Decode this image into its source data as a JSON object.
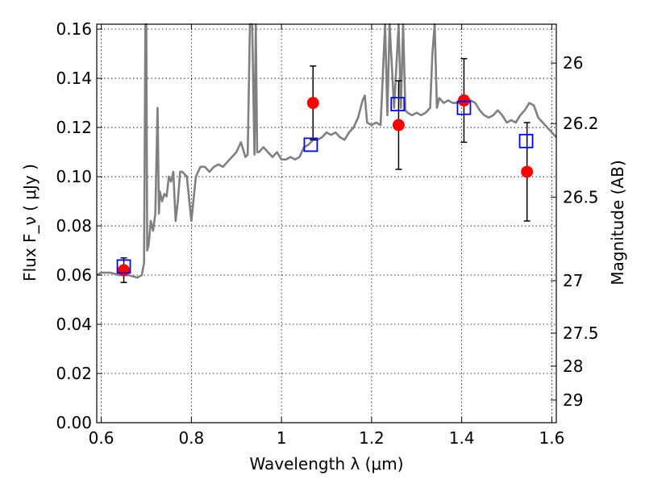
{
  "chart_data": {
    "type": "line",
    "xlabel": "Wavelength  λ (μm)",
    "ylabel": "Flux  F_ν  ( μJy )",
    "ylabel_right": "Magnitude (AB)",
    "xlim": [
      0.59,
      1.61
    ],
    "ylim": [
      0.0,
      0.162
    ],
    "grid": true,
    "x_ticks": [
      0.6,
      0.8,
      1.0,
      1.2,
      1.4,
      1.6
    ],
    "x_tick_labels": [
      "0.6",
      "0.8",
      "1",
      "1.2",
      "1.4",
      "1.6"
    ],
    "y_ticks": [
      0.0,
      0.02,
      0.04,
      0.06,
      0.08,
      0.1,
      0.12,
      0.14,
      0.16
    ],
    "y_tick_labels": [
      "0.00",
      "0.02",
      "0.04",
      "0.06",
      "0.08",
      "0.10",
      "0.12",
      "0.14",
      "0.16"
    ],
    "right_ticks": [
      {
        "flux": 0.1462,
        "label": "26"
      },
      {
        "flux": 0.1216,
        "label": "26.2"
      },
      {
        "flux": 0.0917,
        "label": "26.5"
      },
      {
        "flux": 0.0577,
        "label": "27"
      },
      {
        "flux": 0.0364,
        "label": "27.5"
      },
      {
        "flux": 0.023,
        "label": "28"
      },
      {
        "flux": 0.0092,
        "label": "29"
      }
    ],
    "series": [
      {
        "kind": "spectrum",
        "color": "#808080",
        "x": [
          0.59,
          0.6,
          0.62,
          0.64,
          0.66,
          0.68,
          0.69,
          0.695,
          0.698,
          0.7,
          0.702,
          0.705,
          0.71,
          0.715,
          0.72,
          0.725,
          0.728,
          0.73,
          0.735,
          0.74,
          0.745,
          0.75,
          0.755,
          0.76,
          0.765,
          0.77,
          0.775,
          0.78,
          0.79,
          0.8,
          0.81,
          0.82,
          0.83,
          0.84,
          0.85,
          0.86,
          0.87,
          0.88,
          0.89,
          0.9,
          0.91,
          0.92,
          0.925,
          0.93,
          0.935,
          0.94,
          0.943,
          0.946,
          0.95,
          0.96,
          0.97,
          0.98,
          0.99,
          1.0,
          1.01,
          1.02,
          1.03,
          1.04,
          1.05,
          1.06,
          1.07,
          1.08,
          1.09,
          1.1,
          1.11,
          1.12,
          1.13,
          1.14,
          1.15,
          1.16,
          1.17,
          1.18,
          1.185,
          1.19,
          1.2,
          1.21,
          1.22,
          1.23,
          1.235,
          1.24,
          1.25,
          1.26,
          1.265,
          1.27,
          1.275,
          1.28,
          1.29,
          1.3,
          1.31,
          1.32,
          1.33,
          1.335,
          1.34,
          1.345,
          1.35,
          1.36,
          1.37,
          1.38,
          1.39,
          1.4,
          1.41,
          1.42,
          1.43,
          1.44,
          1.45,
          1.46,
          1.47,
          1.48,
          1.49,
          1.5,
          1.51,
          1.52,
          1.53,
          1.54,
          1.55,
          1.56,
          1.57,
          1.58,
          1.59,
          1.6,
          1.61
        ],
        "y": [
          0.06,
          0.061,
          0.061,
          0.06,
          0.06,
          0.059,
          0.06,
          0.065,
          0.162,
          0.162,
          0.07,
          0.072,
          0.082,
          0.078,
          0.085,
          0.128,
          0.085,
          0.094,
          0.09,
          0.093,
          0.092,
          0.1,
          0.098,
          0.102,
          0.082,
          0.09,
          0.102,
          0.102,
          0.1,
          0.082,
          0.1,
          0.104,
          0.104,
          0.102,
          0.104,
          0.105,
          0.104,
          0.106,
          0.108,
          0.11,
          0.114,
          0.108,
          0.109,
          0.162,
          0.162,
          0.109,
          0.162,
          0.11,
          0.11,
          0.112,
          0.11,
          0.108,
          0.11,
          0.107,
          0.107,
          0.108,
          0.107,
          0.108,
          0.112,
          0.113,
          0.115,
          0.115,
          0.116,
          0.118,
          0.117,
          0.118,
          0.116,
          0.115,
          0.118,
          0.12,
          0.124,
          0.131,
          0.133,
          0.122,
          0.121,
          0.122,
          0.121,
          0.162,
          0.125,
          0.162,
          0.128,
          0.162,
          0.128,
          0.162,
          0.127,
          0.126,
          0.125,
          0.126,
          0.125,
          0.126,
          0.128,
          0.15,
          0.162,
          0.128,
          0.132,
          0.13,
          0.131,
          0.13,
          0.13,
          0.131,
          0.132,
          0.131,
          0.13,
          0.127,
          0.125,
          0.124,
          0.125,
          0.127,
          0.125,
          0.122,
          0.123,
          0.122,
          0.125,
          0.127,
          0.13,
          0.129,
          0.124,
          0.122,
          0.12,
          0.118,
          0.116
        ]
      },
      {
        "kind": "observed",
        "marker": "circle",
        "color": "#ff0000",
        "x": [
          0.65,
          1.07,
          1.26,
          1.405,
          1.545
        ],
        "y": [
          0.062,
          0.13,
          0.121,
          0.131,
          0.102
        ],
        "yerr": [
          0.005,
          0.015,
          0.018,
          0.017,
          0.02
        ]
      },
      {
        "kind": "model",
        "marker": "open-square",
        "color": "#0000ff",
        "x": [
          0.65,
          1.065,
          1.258,
          1.405,
          1.543
        ],
        "y": [
          0.0635,
          0.113,
          0.1295,
          0.128,
          0.1145
        ]
      }
    ]
  }
}
